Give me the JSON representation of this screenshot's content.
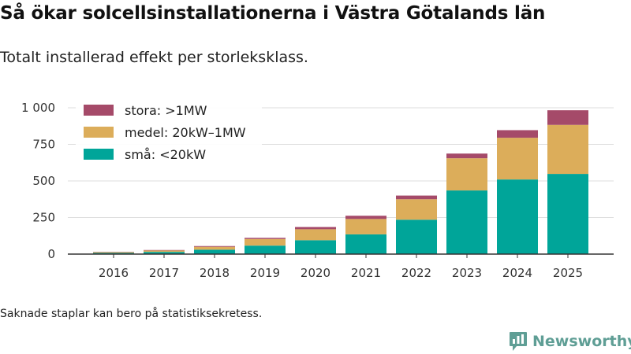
{
  "header": {
    "title": "Så ökar solcellsinstallationerna i Västra Götalands län",
    "subtitle": "Totalt installerad effekt per storleksklass."
  },
  "footnote": "Saknade staplar kan bero på statistiksekretess.",
  "brand": {
    "name": "Newsworthy",
    "icon": "bar-chart-logo-icon"
  },
  "colors": {
    "sma": "#00a599",
    "medel": "#dcad5a",
    "stora": "#a54a69",
    "grid": "#dedede",
    "axis": "#333333"
  },
  "chart_data": {
    "type": "bar",
    "stacked": true,
    "title": "Så ökar solcellsinstallationerna i Västra Götalands län",
    "subtitle": "Totalt installerad effekt per storleksklass.",
    "xlabel": "",
    "ylabel": "",
    "grid": true,
    "legend_position": "top-left",
    "ylim": [
      0,
      1000
    ],
    "yticks": [
      0,
      250,
      500,
      750,
      1000
    ],
    "ytick_labels": [
      "0",
      "250",
      "500",
      "750",
      "1 000"
    ],
    "categories": [
      "2016",
      "2017",
      "2018",
      "2019",
      "2020",
      "2021",
      "2022",
      "2023",
      "2024",
      "2025"
    ],
    "series": [
      {
        "name": "små: <20kW",
        "key": "sma",
        "values": [
          8,
          15,
          30,
          58,
          95,
          135,
          235,
          435,
          510,
          548
        ]
      },
      {
        "name": "medel: 20kW–1MW",
        "key": "medel",
        "values": [
          5,
          10,
          20,
          45,
          75,
          105,
          140,
          220,
          285,
          335
        ]
      },
      {
        "name": "stora: >1MW",
        "key": "stora",
        "values": [
          2,
          3,
          5,
          8,
          15,
          22,
          25,
          32,
          52,
          100
        ]
      }
    ],
    "legend": [
      {
        "label": "stora: >1MW",
        "key": "stora"
      },
      {
        "label": "medel: 20kW–1MW",
        "key": "medel"
      },
      {
        "label": "små: <20kW",
        "key": "sma"
      }
    ]
  }
}
